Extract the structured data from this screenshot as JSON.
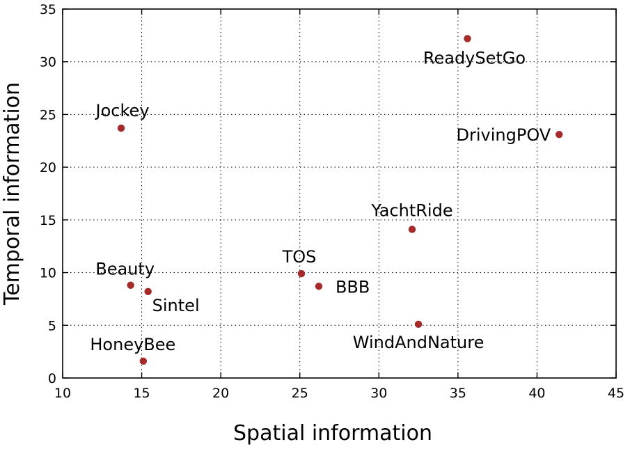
{
  "chart_data": {
    "type": "scatter",
    "xlabel": "Spatial information",
    "ylabel": "Temporal information",
    "xlim": [
      10,
      45
    ],
    "ylim": [
      0,
      35
    ],
    "xticks": [
      10,
      15,
      20,
      25,
      30,
      35,
      40,
      45
    ],
    "yticks": [
      0,
      5,
      10,
      15,
      20,
      25,
      30,
      35
    ],
    "grid": true,
    "point_color": "#a52a2a",
    "points": [
      {
        "label": "ReadySetGo",
        "x": 35.6,
        "y": 32.2
      },
      {
        "label": "DrivingPOV",
        "x": 41.4,
        "y": 23.1
      },
      {
        "label": "Jockey",
        "x": 13.7,
        "y": 23.7
      },
      {
        "label": "YachtRide",
        "x": 32.1,
        "y": 14.1
      },
      {
        "label": "TOS",
        "x": 25.1,
        "y": 9.9
      },
      {
        "label": "BBB",
        "x": 26.2,
        "y": 8.7
      },
      {
        "label": "Beauty",
        "x": 14.3,
        "y": 8.8
      },
      {
        "label": "Sintel",
        "x": 15.4,
        "y": 8.2
      },
      {
        "label": "WindAndNature",
        "x": 32.5,
        "y": 5.1
      },
      {
        "label": "HoneyBee",
        "x": 15.1,
        "y": 1.6
      }
    ]
  }
}
